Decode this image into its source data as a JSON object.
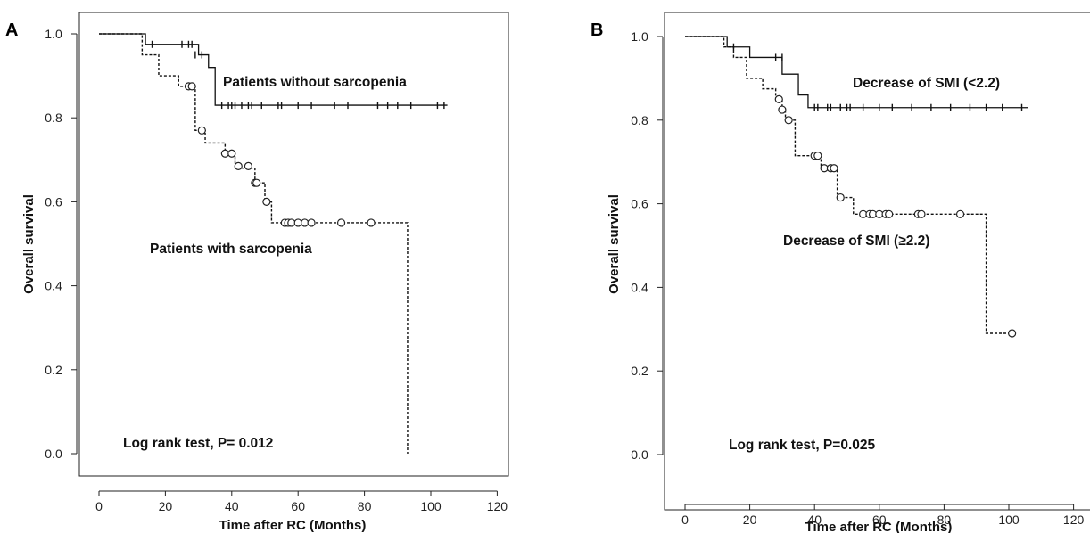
{
  "chart_data": [
    {
      "panel": "A",
      "type": "line",
      "xlabel": "Time after RC (Months)",
      "ylabel": "Overall survival",
      "xlim": [
        0,
        120
      ],
      "ylim": [
        0,
        1.0
      ],
      "xticks": [
        0,
        20,
        40,
        60,
        80,
        100,
        120
      ],
      "yticks": [
        0.0,
        0.2,
        0.4,
        0.6,
        0.8,
        1.0
      ],
      "annotation": "Log rank test, P= 0.012",
      "series": [
        {
          "name": "Patients without sarcopenia",
          "style": "solid",
          "steps": [
            [
              0,
              1.0
            ],
            [
              14,
              0.975
            ],
            [
              30,
              0.95
            ],
            [
              33,
              0.92
            ],
            [
              35,
              0.83
            ],
            [
              105,
              0.83
            ]
          ],
          "censored": [
            [
              16,
              0.975
            ],
            [
              25,
              0.975
            ],
            [
              27,
              0.975
            ],
            [
              28,
              0.975
            ],
            [
              29,
              0.95
            ],
            [
              31,
              0.95
            ],
            [
              37,
              0.83
            ],
            [
              39,
              0.83
            ],
            [
              40,
              0.83
            ],
            [
              41,
              0.83
            ],
            [
              43,
              0.83
            ],
            [
              45,
              0.83
            ],
            [
              46,
              0.83
            ],
            [
              49,
              0.83
            ],
            [
              54,
              0.83
            ],
            [
              55,
              0.83
            ],
            [
              60,
              0.83
            ],
            [
              64,
              0.83
            ],
            [
              71,
              0.83
            ],
            [
              75,
              0.83
            ],
            [
              84,
              0.83
            ],
            [
              87,
              0.83
            ],
            [
              90,
              0.83
            ],
            [
              94,
              0.83
            ],
            [
              102,
              0.83
            ],
            [
              104,
              0.83
            ]
          ]
        },
        {
          "name": "Patients with sarcopenia",
          "style": "dotted",
          "steps": [
            [
              0,
              1.0
            ],
            [
              13,
              0.95
            ],
            [
              18,
              0.9
            ],
            [
              24,
              0.875
            ],
            [
              29,
              0.77
            ],
            [
              32,
              0.74
            ],
            [
              38,
              0.715
            ],
            [
              41,
              0.68
            ],
            [
              47,
              0.645
            ],
            [
              50,
              0.6
            ],
            [
              52,
              0.55
            ],
            [
              93,
              0.55
            ],
            [
              93,
              0.0
            ]
          ],
          "censored": [
            [
              27,
              0.875
            ],
            [
              28,
              0.875
            ],
            [
              31,
              0.77
            ],
            [
              38,
              0.715
            ],
            [
              40,
              0.715
            ],
            [
              42,
              0.685
            ],
            [
              45,
              0.685
            ],
            [
              47,
              0.645
            ],
            [
              47.5,
              0.645
            ],
            [
              50.5,
              0.6
            ],
            [
              56,
              0.55
            ],
            [
              57,
              0.55
            ],
            [
              58,
              0.55
            ],
            [
              60,
              0.55
            ],
            [
              62,
              0.55
            ],
            [
              64,
              0.55
            ],
            [
              73,
              0.55
            ],
            [
              82,
              0.55
            ]
          ]
        }
      ]
    },
    {
      "panel": "B",
      "type": "line",
      "xlabel": "Time after RC (Months)",
      "ylabel": "Overall survival",
      "xlim": [
        0,
        120
      ],
      "ylim": [
        0,
        1.0
      ],
      "xticks": [
        0,
        20,
        40,
        60,
        80,
        100,
        120
      ],
      "yticks": [
        0.0,
        0.2,
        0.4,
        0.6,
        0.8,
        1.0
      ],
      "annotation": "Log rank test, P=0.025",
      "series": [
        {
          "name": "Decrease of SMI (<2.2)",
          "style": "solid",
          "steps": [
            [
              0,
              1.0
            ],
            [
              13,
              0.975
            ],
            [
              20,
              0.95
            ],
            [
              30,
              0.91
            ],
            [
              35,
              0.86
            ],
            [
              38,
              0.83
            ],
            [
              106,
              0.83
            ]
          ],
          "censored": [
            [
              15,
              0.975
            ],
            [
              28,
              0.95
            ],
            [
              30,
              0.95
            ],
            [
              40,
              0.83
            ],
            [
              41,
              0.83
            ],
            [
              44,
              0.83
            ],
            [
              45,
              0.83
            ],
            [
              48,
              0.83
            ],
            [
              50,
              0.83
            ],
            [
              51,
              0.83
            ],
            [
              55,
              0.83
            ],
            [
              60,
              0.83
            ],
            [
              64,
              0.83
            ],
            [
              70,
              0.83
            ],
            [
              76,
              0.83
            ],
            [
              82,
              0.83
            ],
            [
              88,
              0.83
            ],
            [
              93,
              0.83
            ],
            [
              98,
              0.83
            ],
            [
              104,
              0.83
            ]
          ]
        },
        {
          "name": "Decrease of SMI (≥2.2)",
          "style": "dotted",
          "steps": [
            [
              0,
              1.0
            ],
            [
              12,
              0.975
            ],
            [
              15,
              0.95
            ],
            [
              19,
              0.9
            ],
            [
              24,
              0.875
            ],
            [
              28,
              0.85
            ],
            [
              30,
              0.82
            ],
            [
              31,
              0.8
            ],
            [
              34,
              0.715
            ],
            [
              42,
              0.685
            ],
            [
              47,
              0.615
            ],
            [
              52,
              0.575
            ],
            [
              93,
              0.575
            ],
            [
              93,
              0.29
            ],
            [
              101,
              0.29
            ]
          ],
          "censored": [
            [
              29,
              0.85
            ],
            [
              30,
              0.825
            ],
            [
              32,
              0.8
            ],
            [
              40,
              0.715
            ],
            [
              41,
              0.715
            ],
            [
              43,
              0.685
            ],
            [
              45,
              0.685
            ],
            [
              46,
              0.685
            ],
            [
              48,
              0.615
            ],
            [
              55,
              0.575
            ],
            [
              57,
              0.575
            ],
            [
              58,
              0.575
            ],
            [
              60,
              0.575
            ],
            [
              62,
              0.575
            ],
            [
              63,
              0.575
            ],
            [
              72,
              0.575
            ],
            [
              73,
              0.575
            ],
            [
              85,
              0.575
            ],
            [
              101,
              0.29
            ]
          ]
        }
      ]
    }
  ],
  "panels": [
    {
      "letter": "A",
      "labels": {
        "upper": "Patients without sarcopenia",
        "lower": "Patients with sarcopenia",
        "test": "Log rank test, P= 0.012"
      }
    },
    {
      "letter": "B",
      "labels": {
        "upper": "Decrease of SMI (<2.2)",
        "lower": "Decrease of SMI (≥2.2)",
        "test": "Log rank test, P=0.025"
      }
    }
  ]
}
